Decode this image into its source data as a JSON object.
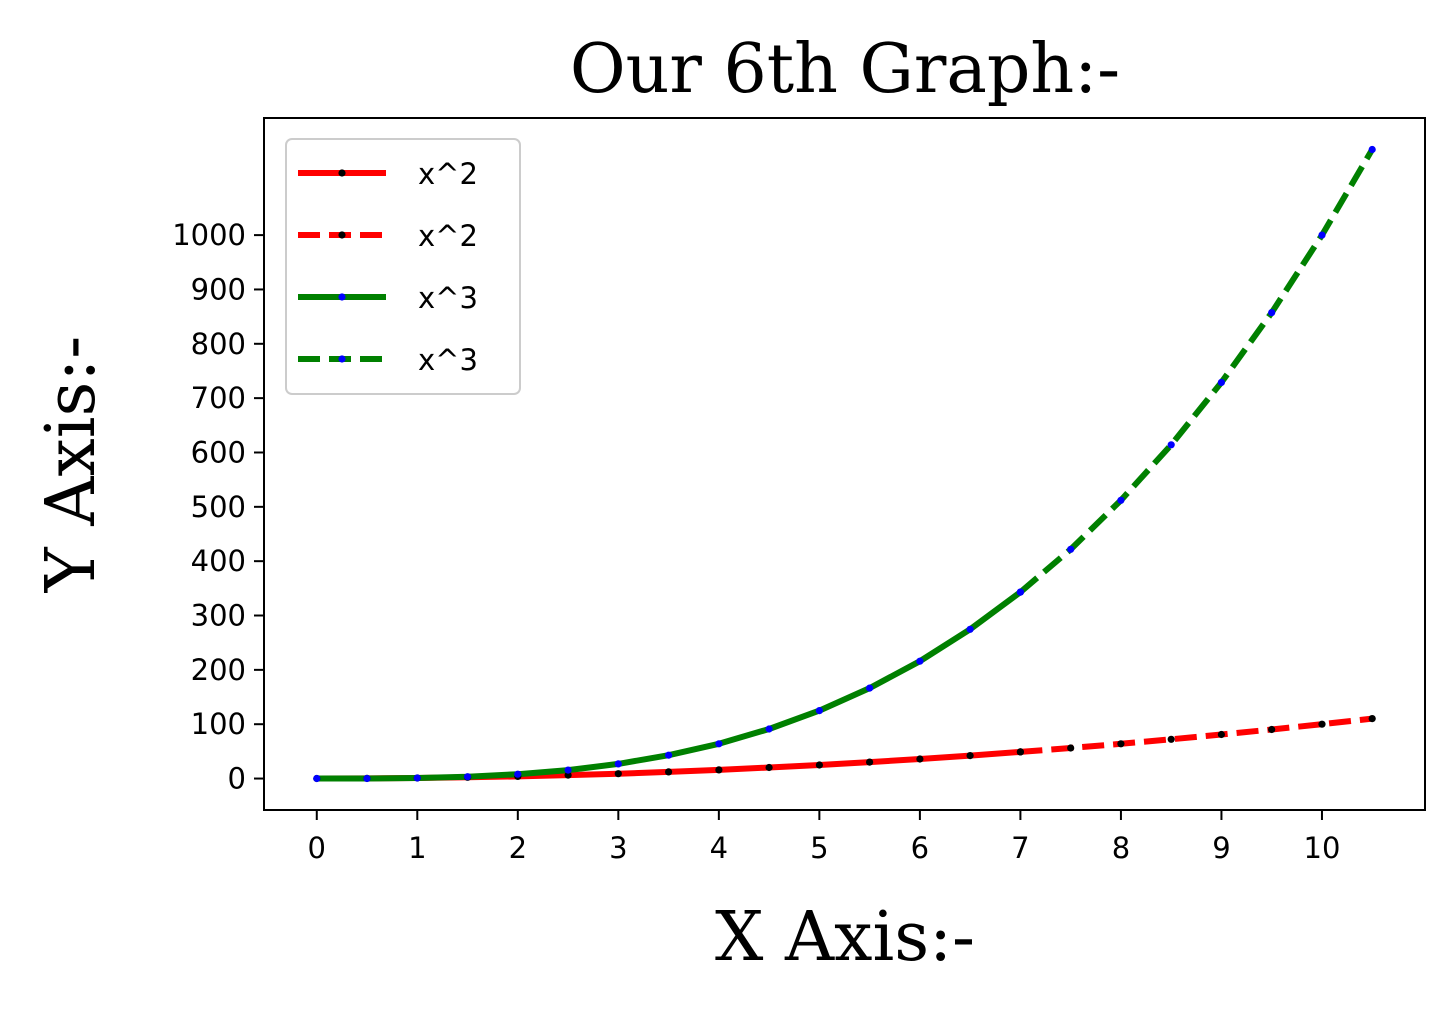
{
  "chart_data": {
    "type": "line",
    "title": "Our 6th Graph:-",
    "xlabel": "X Axis:-",
    "ylabel": "Y Axis:-",
    "x": [
      0,
      0.5,
      1,
      1.5,
      2,
      2.5,
      3,
      3.5,
      4,
      4.5,
      5,
      5.5,
      6,
      6.5,
      7,
      7.5,
      8,
      8.5,
      9,
      9.5,
      10,
      10.5
    ],
    "xticks": [
      0,
      1,
      2,
      3,
      4,
      5,
      6,
      7,
      8,
      9,
      10
    ],
    "yticks": [
      0,
      100,
      200,
      300,
      400,
      500,
      600,
      700,
      800,
      900,
      1000
    ],
    "xlim": [
      -0.525,
      11.025
    ],
    "ylim": [
      -57.88,
      1215.5
    ],
    "grid": false,
    "legend_position": "top-left",
    "series": [
      {
        "name": "x^2",
        "line_style": "solid",
        "color": "#ff0000",
        "marker_color": "#000000",
        "x": [
          0,
          0.5,
          1,
          1.5,
          2,
          2.5,
          3,
          3.5,
          4,
          4.5,
          5,
          5.5,
          6,
          6.5,
          7
        ],
        "values": [
          0,
          0.25,
          1,
          2.25,
          4,
          6.25,
          9,
          12.25,
          16,
          20.25,
          25,
          30.25,
          36,
          42.25,
          49
        ]
      },
      {
        "name": "x^2",
        "line_style": "dashed",
        "color": "#ff0000",
        "marker_color": "#000000",
        "x": [
          7,
          7.5,
          8,
          8.5,
          9,
          9.5,
          10,
          10.5
        ],
        "values": [
          49,
          56.25,
          64,
          72.25,
          81,
          90.25,
          100,
          110.25
        ]
      },
      {
        "name": "x^3",
        "line_style": "solid",
        "color": "#008000",
        "marker_color": "#0000ff",
        "x": [
          0,
          0.5,
          1,
          1.5,
          2,
          2.5,
          3,
          3.5,
          4,
          4.5,
          5,
          5.5,
          6,
          6.5,
          7
        ],
        "values": [
          0,
          0.125,
          1,
          3.375,
          8,
          15.625,
          27,
          42.875,
          64,
          91.125,
          125,
          166.375,
          216,
          274.625,
          343
        ]
      },
      {
        "name": "x^3",
        "line_style": "dashed",
        "color": "#008000",
        "marker_color": "#0000ff",
        "x": [
          7,
          7.5,
          8,
          8.5,
          9,
          9.5,
          10,
          10.5
        ],
        "values": [
          343,
          421.875,
          512,
          614.125,
          729,
          857.375,
          1000,
          1157.625
        ]
      }
    ]
  }
}
